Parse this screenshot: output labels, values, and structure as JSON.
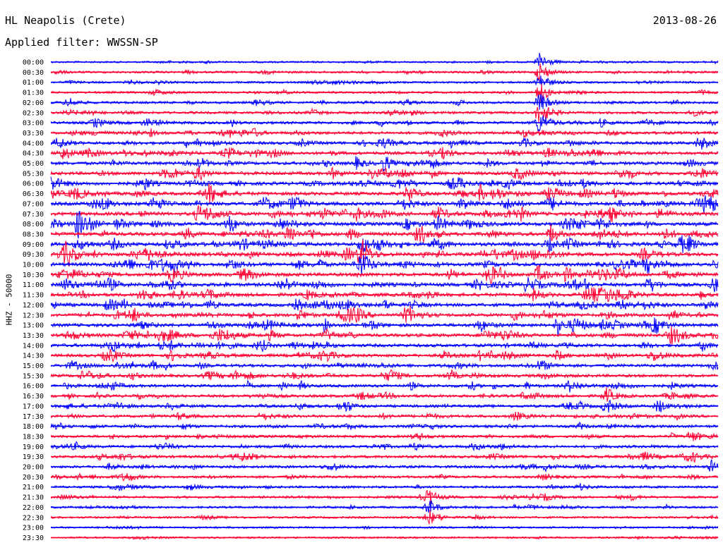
{
  "header": {
    "station": "HL Neapolis (Crete)",
    "date": "2013-08-26",
    "filter": "Applied filter: WWSSN-SP"
  },
  "colors": {
    "even_trace": "#0000ff",
    "odd_trace": "#ff0033",
    "text": "#000000"
  },
  "chart_data": {
    "type": "line",
    "title": "HL Neapolis (Crete)",
    "subtitle": "Applied filter: WWSSN-SP",
    "ylabel": "HHZ - 50000",
    "xlabel": "",
    "row_labels": [
      "00:00",
      "00:30",
      "01:00",
      "01:30",
      "02:00",
      "02:30",
      "03:00",
      "03:30",
      "04:00",
      "04:30",
      "05:00",
      "05:30",
      "06:00",
      "06:30",
      "07:00",
      "07:30",
      "08:00",
      "08:30",
      "09:00",
      "09:30",
      "10:00",
      "10:30",
      "11:00",
      "11:30",
      "12:00",
      "12:30",
      "13:00",
      "13:30",
      "14:00",
      "14:30",
      "15:00",
      "15:30",
      "16:00",
      "16:30",
      "17:00",
      "17:30",
      "18:00",
      "18:30",
      "19:00",
      "19:30",
      "20:00",
      "20:30",
      "21:00",
      "21:30",
      "22:00",
      "22:30",
      "23:00",
      "23:30"
    ],
    "row_duration_minutes": 30,
    "activity_level": [
      0.18,
      0.28,
      0.25,
      0.3,
      0.38,
      0.45,
      0.5,
      0.58,
      0.62,
      0.66,
      0.7,
      0.75,
      0.78,
      0.8,
      0.82,
      0.84,
      0.85,
      0.86,
      0.86,
      0.85,
      0.84,
      0.82,
      0.8,
      0.78,
      0.76,
      0.75,
      0.74,
      0.73,
      0.72,
      0.68,
      0.62,
      0.6,
      0.58,
      0.56,
      0.54,
      0.52,
      0.5,
      0.48,
      0.5,
      0.52,
      0.5,
      0.44,
      0.36,
      0.34,
      0.28,
      0.24,
      0.2,
      0.16
    ],
    "notable_events": [
      {
        "time": "00:00-03:00",
        "minute": 22,
        "level": 1.0,
        "description_only_visual": "large event"
      },
      {
        "time": "09:00-10:00",
        "minute": 14,
        "level": 0.9
      },
      {
        "time": "16:30-17:00",
        "minute": 25,
        "level": 0.8
      },
      {
        "time": "21:30-22:30",
        "minute": 17,
        "level": 0.8
      }
    ],
    "legend": "none",
    "grid": false
  }
}
